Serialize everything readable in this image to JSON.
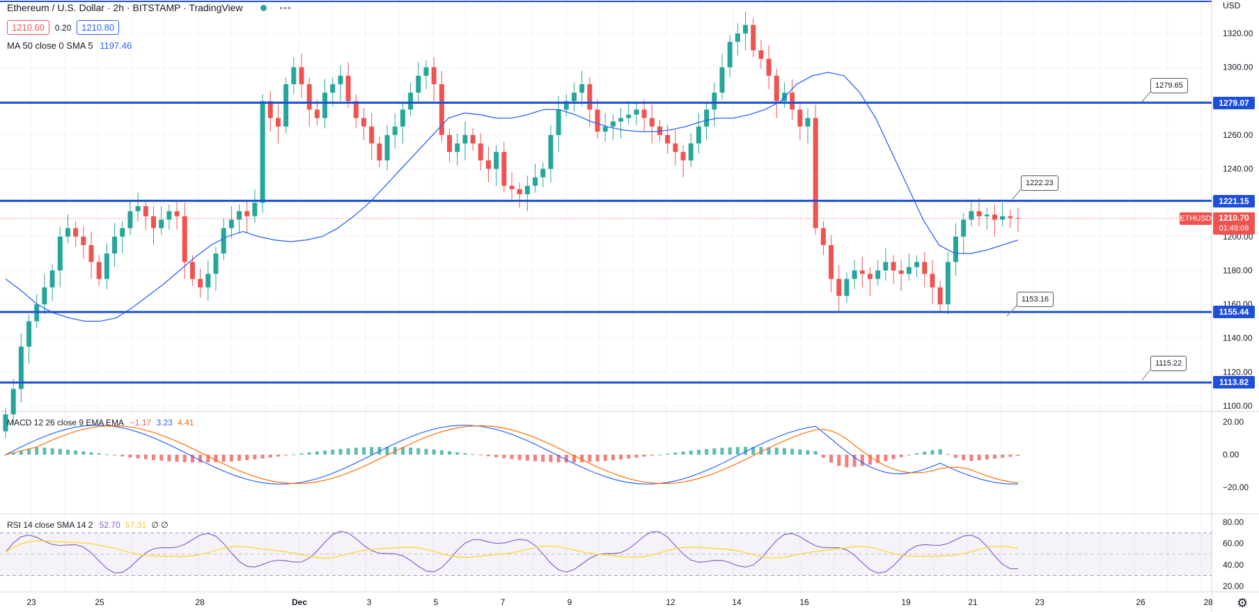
{
  "header": {
    "title": "Ethereum / U.S. Dollar · 2h · BITSTAMP · TradingView",
    "bid": "1210.60",
    "spread": "0.20",
    "ask": "1210.80",
    "ma_label": "MA 50 close 0 SMA 5",
    "ma_value": "1197.46",
    "currency": "USD"
  },
  "price_axis_ticks": [
    "1320.00",
    "1300.00",
    "1280.00",
    "1260.00",
    "1240.00",
    "1220.00",
    "1200.00",
    "1180.00",
    "1160.00",
    "1140.00",
    "1120.00",
    "1100.00"
  ],
  "lines": [
    {
      "price": 1279.07,
      "label": "1279.07"
    },
    {
      "price": 1221.15,
      "label": "1221.15"
    },
    {
      "price": 1155.44,
      "label": "1155.44"
    },
    {
      "price": 1113.82,
      "label": "1113.82"
    }
  ],
  "callouts": [
    "1279.65",
    "1222.23",
    "1153.16",
    "1115.22"
  ],
  "current": {
    "symbol": "ETHUSD",
    "price": "1210.70",
    "countdown": "01:49:08"
  },
  "macd": {
    "label": "MACD 12 26 close 9 EMA EMA",
    "hist": "−1.17",
    "macd": "3.23",
    "signal": "4.41",
    "ticks": [
      "20.00",
      "0.00",
      "−20.00"
    ]
  },
  "rsi": {
    "label": "RSI 14 close SMA 14 2",
    "rsi": "52.70",
    "sma": "57.31",
    "extra": "∅ ∅",
    "ticks": [
      "80.00",
      "60.00",
      "40.00",
      "20.00"
    ]
  },
  "time_axis": [
    "23",
    "25",
    "28",
    "Dec",
    "3",
    "5",
    "7",
    "9",
    "12",
    "14",
    "16",
    "19",
    "21",
    "23",
    "26",
    "28"
  ],
  "colors": {
    "up": "#26a69a",
    "down": "#ef5350",
    "line": "#1e4fd9",
    "ma": "#2962ff",
    "signal": "#ff6d00",
    "rsi": "#7e57c2",
    "rsi_sma": "#fdd835"
  },
  "chart_data": {
    "type": "candlestick",
    "symbol": "ETHUSD",
    "interval": "2h",
    "ylim": [
      1100,
      1327
    ],
    "x_labels": [
      "23",
      "25",
      "28",
      "Dec",
      "3",
      "5",
      "7",
      "9",
      "12",
      "14",
      "16",
      "19",
      "21",
      "23",
      "26",
      "28"
    ],
    "close_series": [
      1095,
      1110,
      1135,
      1150,
      1160,
      1170,
      1180,
      1200,
      1205,
      1200,
      1195,
      1185,
      1175,
      1190,
      1200,
      1205,
      1215,
      1218,
      1212,
      1205,
      1210,
      1215,
      1212,
      1185,
      1175,
      1170,
      1178,
      1190,
      1205,
      1210,
      1215,
      1212,
      1220,
      1280,
      1270,
      1265,
      1290,
      1300,
      1290,
      1275,
      1270,
      1285,
      1290,
      1295,
      1280,
      1270,
      1265,
      1255,
      1245,
      1260,
      1265,
      1275,
      1285,
      1295,
      1300,
      1290,
      1260,
      1250,
      1255,
      1260,
      1255,
      1245,
      1240,
      1250,
      1230,
      1228,
      1225,
      1230,
      1235,
      1240,
      1260,
      1275,
      1280,
      1285,
      1290,
      1275,
      1262,
      1265,
      1268,
      1270,
      1272,
      1275,
      1270,
      1265,
      1260,
      1255,
      1250,
      1245,
      1255,
      1265,
      1275,
      1285,
      1300,
      1315,
      1320,
      1325,
      1310,
      1305,
      1295,
      1280,
      1285,
      1275,
      1265,
      1270,
      1205,
      1195,
      1175,
      1165,
      1175,
      1180,
      1178,
      1175,
      1180,
      1185,
      1180,
      1178,
      1182,
      1185,
      1178,
      1170,
      1160,
      1185,
      1200,
      1210,
      1215,
      1212,
      1213,
      1210,
      1212,
      1211,
      1210.7
    ],
    "ma50_series": [
      1175,
      1168,
      1160,
      1155,
      1152,
      1150,
      1150,
      1152,
      1158,
      1165,
      1172,
      1180,
      1188,
      1195,
      1200,
      1203,
      1200,
      1198,
      1197,
      1198,
      1200,
      1205,
      1212,
      1220,
      1230,
      1240,
      1250,
      1260,
      1270,
      1273,
      1272,
      1270,
      1270,
      1272,
      1275,
      1275,
      1272,
      1268,
      1265,
      1263,
      1262,
      1262,
      1263,
      1265,
      1268,
      1270,
      1270,
      1272,
      1275,
      1280,
      1290,
      1295,
      1297,
      1295,
      1285,
      1270,
      1250,
      1230,
      1210,
      1195,
      1190,
      1190,
      1192,
      1195,
      1198
    ],
    "levels": [
      1279.07,
      1221.15,
      1155.44,
      1113.82
    ],
    "last_price": 1210.7,
    "macd": {
      "macd": 3.23,
      "signal": 4.41,
      "histogram": -1.17
    },
    "rsi": {
      "rsi": 52.7,
      "sma": 57.31,
      "upper": 70,
      "lower": 30
    }
  }
}
